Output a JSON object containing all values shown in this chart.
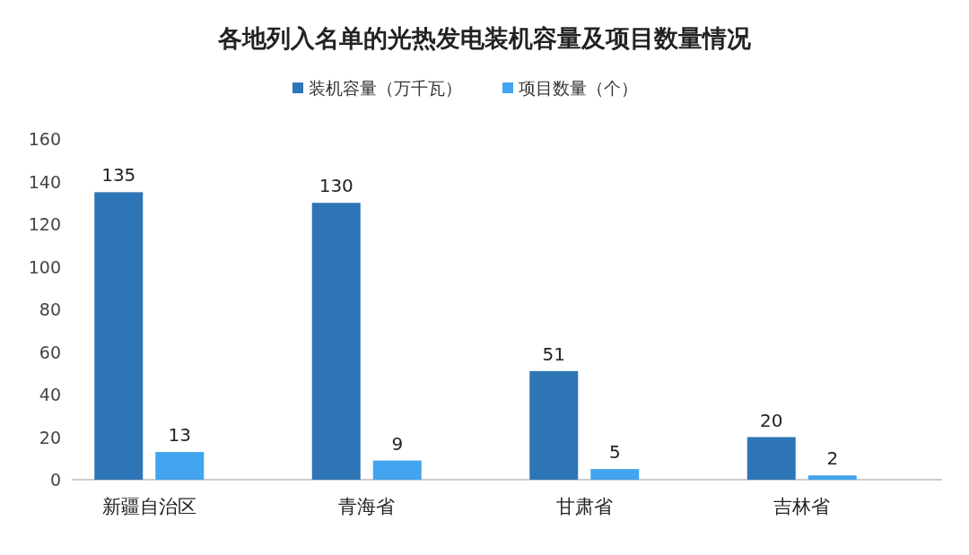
{
  "chart_data": {
    "type": "bar",
    "title": "各地列入名单的光热发电装机容量及项目数量情况",
    "categories": [
      "新疆自治区",
      "青海省",
      "甘肃省",
      "吉林省"
    ],
    "series": [
      {
        "name": "装机容量（万千瓦）",
        "color": "#2e75b6",
        "values": [
          135,
          130,
          51,
          20
        ]
      },
      {
        "name": "项目数量（个）",
        "color": "#42a4ee",
        "values": [
          13,
          9,
          5,
          2
        ]
      }
    ],
    "ylim": [
      0,
      160
    ],
    "yticks": [
      0,
      20,
      40,
      60,
      80,
      100,
      120,
      140,
      160
    ],
    "grid": false,
    "legend": "top",
    "data_labels": true
  }
}
